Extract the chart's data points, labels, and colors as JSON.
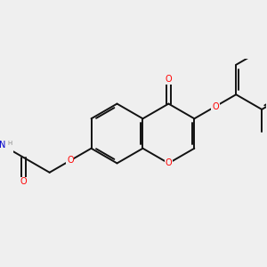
{
  "bg_color": "#efefef",
  "bond_color": "#111111",
  "oxygen_color": "#ff0000",
  "nitrogen_color": "#0000cc",
  "h_color": "#888888",
  "line_width": 1.4,
  "font_size_atom": 7.0,
  "xlim": [
    -4.0,
    4.5
  ],
  "ylim": [
    -2.5,
    2.5
  ]
}
